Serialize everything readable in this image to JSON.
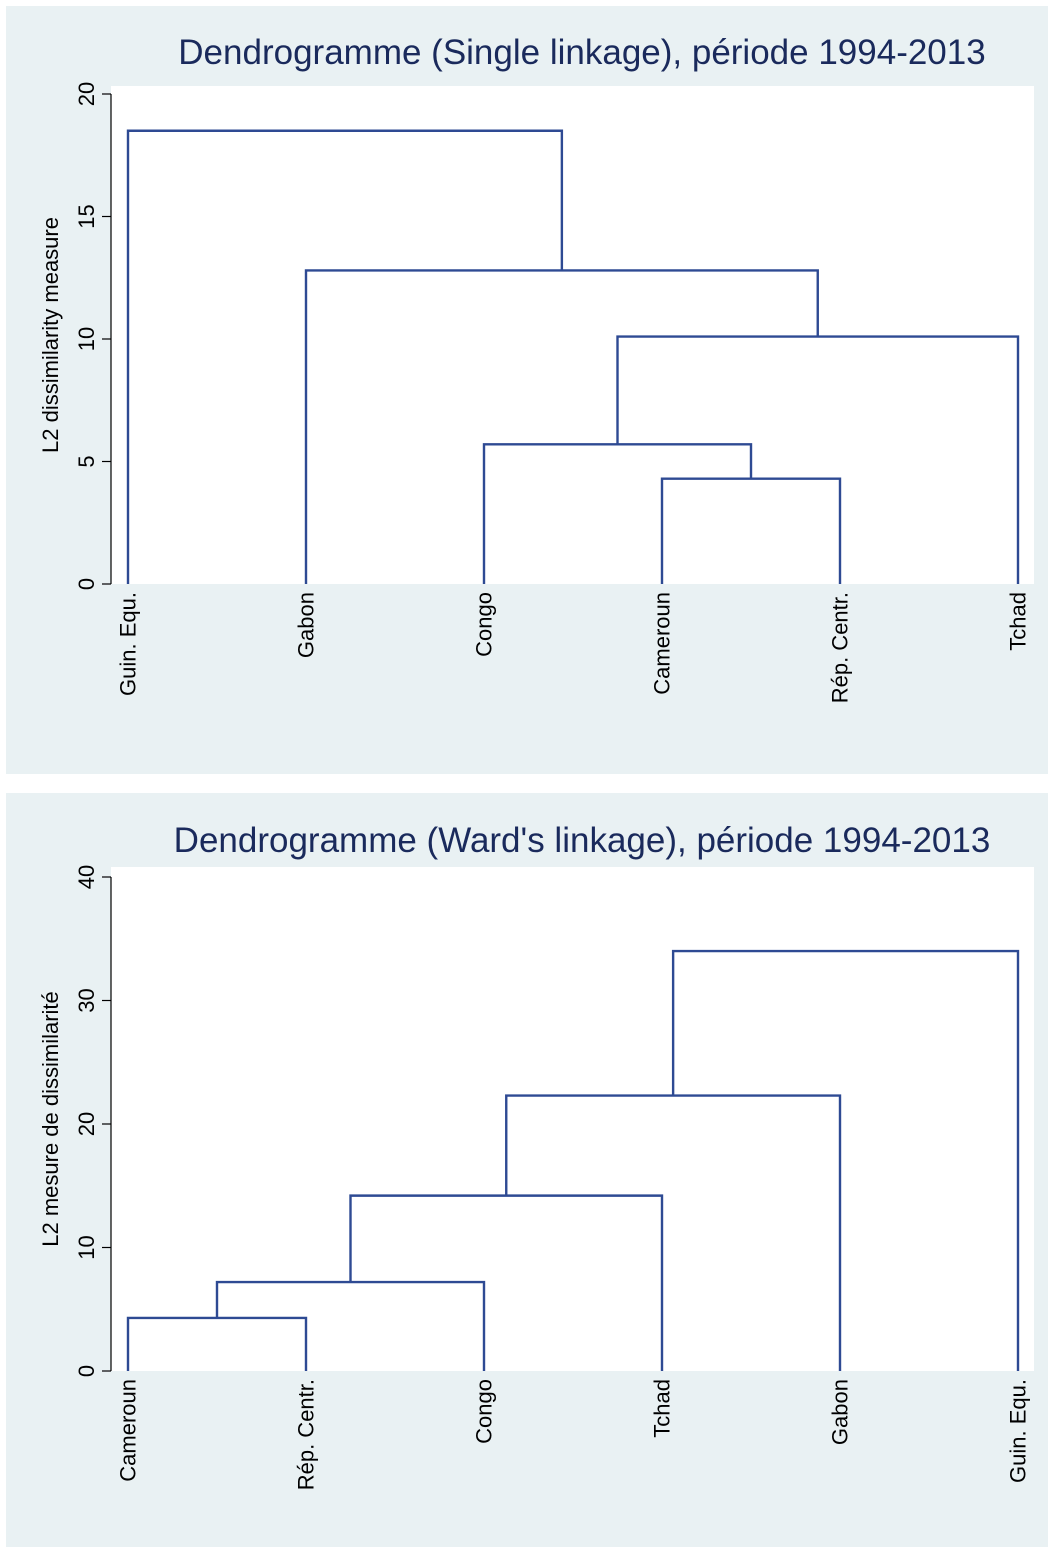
{
  "chart_data": [
    {
      "type": "dendrogram",
      "title": "Dendrogramme (Single linkage), période 1994-2013",
      "ylabel": "L2 dissimilarity measure",
      "ylim": [
        0,
        20
      ],
      "yticks": [
        "0",
        "5",
        "10",
        "15",
        "20"
      ],
      "leaves": [
        "Guin. Equ.",
        "Gabon",
        "Congo",
        "Cameroun",
        "Rép. Centr.",
        "Tchad"
      ],
      "merges": [
        {
          "left": "Cameroun",
          "right": "Rép. Centr.",
          "height": 4.3
        },
        {
          "left": "Congo",
          "right": "Cameroun + Rép. Centr.",
          "height": 5.7
        },
        {
          "left": "Congo + Cameroun + Rép. Centr.",
          "right": "Tchad",
          "height": 10.1
        },
        {
          "left": "Gabon",
          "right": "Congo + Cameroun + Rép. Centr. + Tchad",
          "height": 12.8
        },
        {
          "left": "Guin. Equ.",
          "right": "Gabon + Congo + Cameroun + Rép. Centr. + Tchad",
          "height": 18.5
        }
      ],
      "colors": {
        "link": "#2e4a93",
        "background": "#e9f1f3",
        "plot": "#ffffff",
        "title": "#1a2a5c"
      }
    },
    {
      "type": "dendrogram",
      "title": "Dendrogramme (Ward's linkage), période 1994-2013",
      "ylabel": "L2 mesure de dissimilarité",
      "ylim": [
        0,
        40
      ],
      "yticks": [
        "0",
        "10",
        "20",
        "30",
        "40"
      ],
      "leaves": [
        "Cameroun",
        "Rép. Centr.",
        "Congo",
        "Tchad",
        "Gabon",
        "Guin. Equ."
      ],
      "merges": [
        {
          "left": "Cameroun",
          "right": "Rép. Centr.",
          "height": 4.3
        },
        {
          "left": "Cameroun + Rép. Centr.",
          "right": "Congo",
          "height": 7.2
        },
        {
          "left": "Cameroun + Rép. Centr. + Congo",
          "right": "Tchad",
          "height": 14.2
        },
        {
          "left": "Cameroun + Rép. Centr. + Congo + Tchad",
          "right": "Gabon",
          "height": 22.3
        },
        {
          "left": "Cameroun + Rép. Centr. + Congo + Tchad + Gabon",
          "right": "Guin. Equ.",
          "height": 34.0
        }
      ],
      "colors": {
        "link": "#2e4a93",
        "background": "#e9f1f3",
        "plot": "#ffffff",
        "title": "#1a2a5c"
      }
    }
  ]
}
